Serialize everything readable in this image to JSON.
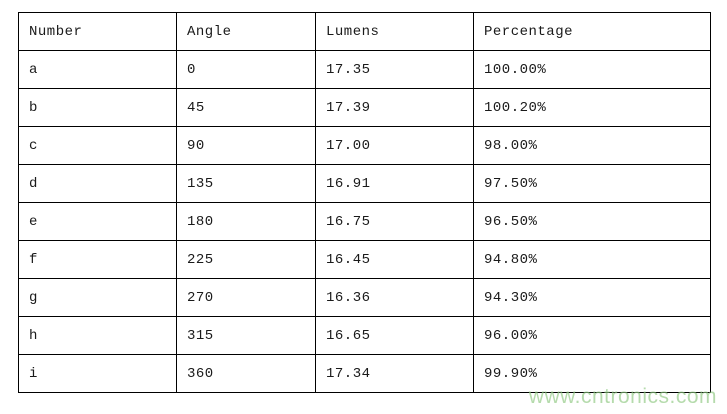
{
  "table": {
    "columns": [
      "Number",
      "Angle",
      "Lumens",
      "Percentage"
    ],
    "rows": [
      [
        "a",
        "0",
        "17.35",
        "100.00%"
      ],
      [
        "b",
        "45",
        "17.39",
        "100.20%"
      ],
      [
        "c",
        "90",
        "17.00",
        "98.00%"
      ],
      [
        "d",
        "135",
        "16.91",
        "97.50%"
      ],
      [
        "e",
        "180",
        "16.75",
        "96.50%"
      ],
      [
        "f",
        "225",
        "16.45",
        "94.80%"
      ],
      [
        "g",
        "270",
        "16.36",
        "94.30%"
      ],
      [
        "h",
        "315",
        "16.65",
        "96.00%"
      ],
      [
        "i",
        "360",
        "17.34",
        "99.90%"
      ]
    ]
  },
  "chart_data": {
    "type": "table",
    "title": "",
    "categories": [
      "a",
      "b",
      "c",
      "d",
      "e",
      "f",
      "g",
      "h",
      "i"
    ],
    "series": [
      {
        "name": "Angle",
        "values": [
          0,
          45,
          90,
          135,
          180,
          225,
          270,
          315,
          360
        ]
      },
      {
        "name": "Lumens",
        "values": [
          17.35,
          17.39,
          17.0,
          16.91,
          16.75,
          16.45,
          16.36,
          16.65,
          17.34
        ]
      },
      {
        "name": "Percentage",
        "values": [
          100.0,
          100.2,
          98.0,
          97.5,
          96.5,
          94.8,
          94.3,
          96.0,
          99.9
        ]
      }
    ]
  },
  "watermark": {
    "text": "www.cntronics.com",
    "color": "#8dc780"
  },
  "colors": {
    "border": "#000000",
    "text": "#1a1a1a",
    "background": "#ffffff"
  }
}
